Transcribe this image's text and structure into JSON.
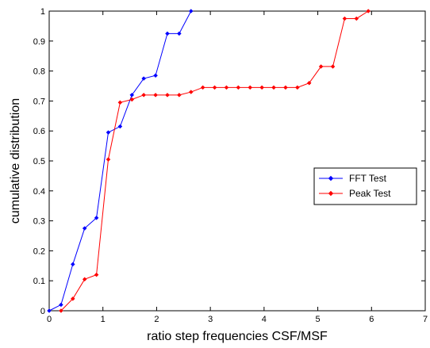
{
  "chart_data": {
    "type": "line",
    "title": "",
    "xlabel": "ratio step frequencies CSF/MSF",
    "ylabel": "cumulative distribution",
    "xlim": [
      0,
      7
    ],
    "ylim": [
      0,
      1
    ],
    "xticks": [
      0,
      1,
      2,
      3,
      4,
      5,
      6,
      7
    ],
    "yticks": [
      0,
      0.1,
      0.2,
      0.3,
      0.4,
      0.5,
      0.6,
      0.7,
      0.8,
      0.9,
      1
    ],
    "xtick_labels": [
      "0",
      "1",
      "2",
      "3",
      "4",
      "5",
      "6",
      "7"
    ],
    "ytick_labels": [
      "0",
      "0.1",
      "0.2",
      "0.3",
      "0.4",
      "0.5",
      "0.6",
      "0.7",
      "0.8",
      "0.9",
      "1"
    ],
    "grid": false,
    "legend_position": "right",
    "series": [
      {
        "name": "FFT Test",
        "color": "#0000ff",
        "marker": "diamond",
        "x": [
          0,
          0.22,
          0.44,
          0.66,
          0.88,
          1.1,
          1.32,
          1.54,
          1.76,
          1.98,
          2.2,
          2.42,
          2.64
        ],
        "y": [
          0,
          0.02,
          0.155,
          0.275,
          0.31,
          0.595,
          0.615,
          0.72,
          0.775,
          0.785,
          0.925,
          0.925,
          1.0
        ]
      },
      {
        "name": "Peak Test",
        "color": "#ff0000",
        "marker": "diamond",
        "x": [
          0.22,
          0.44,
          0.66,
          0.88,
          1.1,
          1.32,
          1.54,
          1.76,
          1.98,
          2.2,
          2.42,
          2.64,
          2.86,
          3.08,
          3.3,
          3.52,
          3.74,
          3.96,
          4.18,
          4.4,
          4.62,
          4.84,
          5.06,
          5.28,
          5.5,
          5.72,
          5.94
        ],
        "y": [
          0,
          0.04,
          0.105,
          0.12,
          0.505,
          0.695,
          0.705,
          0.72,
          0.72,
          0.72,
          0.72,
          0.73,
          0.745,
          0.745,
          0.745,
          0.745,
          0.745,
          0.745,
          0.745,
          0.745,
          0.745,
          0.76,
          0.815,
          0.815,
          0.975,
          0.975,
          1.0
        ]
      }
    ]
  }
}
